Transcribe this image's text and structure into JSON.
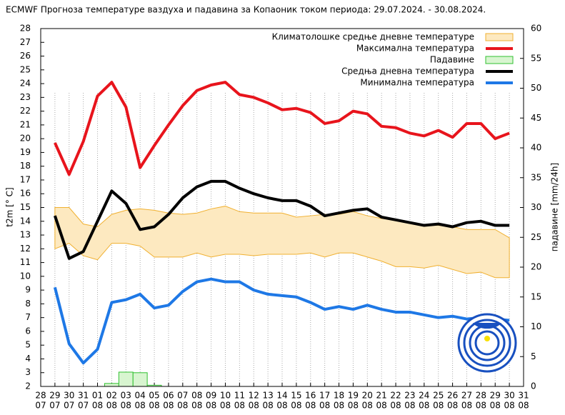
{
  "chart_data": {
    "type": "line",
    "title": "ECMWF Прогноза температуре ваздуха и падавина за Копаоник током периода: 29.07.2024. - 30.08.2024.",
    "ylabel": "t2m [° C]",
    "y2label": "падавине [mm/24h]",
    "categories": [
      [
        "28",
        "07"
      ],
      [
        "29",
        "07"
      ],
      [
        "30",
        "07"
      ],
      [
        "31",
        "07"
      ],
      [
        "01",
        "08"
      ],
      [
        "02",
        "08"
      ],
      [
        "03",
        "08"
      ],
      [
        "04",
        "08"
      ],
      [
        "05",
        "08"
      ],
      [
        "06",
        "08"
      ],
      [
        "07",
        "08"
      ],
      [
        "08",
        "08"
      ],
      [
        "09",
        "08"
      ],
      [
        "10",
        "08"
      ],
      [
        "11",
        "08"
      ],
      [
        "12",
        "08"
      ],
      [
        "13",
        "08"
      ],
      [
        "14",
        "08"
      ],
      [
        "15",
        "08"
      ],
      [
        "16",
        "08"
      ],
      [
        "17",
        "08"
      ],
      [
        "18",
        "08"
      ],
      [
        "19",
        "08"
      ],
      [
        "20",
        "08"
      ],
      [
        "21",
        "08"
      ],
      [
        "22",
        "08"
      ],
      [
        "23",
        "08"
      ],
      [
        "24",
        "08"
      ],
      [
        "25",
        "08"
      ],
      [
        "26",
        "08"
      ],
      [
        "27",
        "08"
      ],
      [
        "28",
        "08"
      ],
      [
        "29",
        "08"
      ],
      [
        "30",
        "08"
      ],
      [
        "31",
        "08"
      ]
    ],
    "ylim": [
      2,
      28
    ],
    "yticks": [
      2,
      3,
      4,
      5,
      6,
      7,
      8,
      9,
      10,
      11,
      12,
      13,
      14,
      15,
      16,
      17,
      18,
      19,
      20,
      21,
      22,
      23,
      24,
      25,
      26,
      27,
      28
    ],
    "y2lim": [
      0,
      60
    ],
    "y2ticks": [
      0,
      5,
      10,
      15,
      20,
      25,
      30,
      35,
      40,
      45,
      50,
      55,
      60
    ],
    "series": [
      {
        "name": "Климатолошке средње дневне температуре",
        "kind": "band",
        "color": "#f0b030",
        "fill": "#fde9c0",
        "high": [
          null,
          15.0,
          15.0,
          13.8,
          13.6,
          14.5,
          14.8,
          14.9,
          14.8,
          14.6,
          14.5,
          14.6,
          14.9,
          15.1,
          14.7,
          14.6,
          14.6,
          14.6,
          14.3,
          14.4,
          14.5,
          14.5,
          14.7,
          14.4,
          14.2,
          14.1,
          13.9,
          13.7,
          13.7,
          13.6,
          13.4,
          13.4,
          13.4,
          12.8,
          null
        ],
        "low": [
          null,
          12.0,
          12.4,
          11.5,
          11.2,
          12.4,
          12.4,
          12.2,
          11.4,
          11.4,
          11.4,
          11.7,
          11.4,
          11.6,
          11.6,
          11.5,
          11.6,
          11.6,
          11.6,
          11.7,
          11.4,
          11.7,
          11.7,
          11.4,
          11.1,
          10.7,
          10.7,
          10.6,
          10.8,
          10.5,
          10.2,
          10.3,
          9.9,
          9.9,
          null
        ]
      },
      {
        "name": "Максимална температура",
        "kind": "line",
        "color": "#e8141c",
        "values": [
          null,
          19.7,
          17.4,
          19.8,
          23.1,
          24.1,
          22.3,
          17.9,
          19.5,
          21.0,
          22.4,
          23.5,
          23.9,
          24.1,
          23.2,
          23.0,
          22.6,
          22.1,
          22.2,
          21.9,
          21.1,
          21.3,
          22.0,
          21.8,
          20.9,
          20.8,
          20.4,
          20.2,
          20.6,
          20.1,
          21.1,
          21.1,
          20.0,
          20.4,
          null
        ]
      },
      {
        "name": "Падавине",
        "kind": "bar",
        "axis": "y2",
        "color": "#30c030",
        "fill": "#d8f5d0",
        "values": [
          null,
          0,
          0,
          0,
          0,
          0.5,
          2.4,
          2.3,
          0.2,
          0,
          0,
          0,
          0,
          0,
          0,
          0,
          0,
          0,
          0,
          0,
          0,
          0,
          0,
          0,
          0,
          0,
          0,
          0,
          0,
          0,
          0,
          0,
          0,
          0,
          null
        ]
      },
      {
        "name": "Средња дневна температура",
        "kind": "line",
        "color": "#000000",
        "values": [
          null,
          14.4,
          11.3,
          11.8,
          14.0,
          16.2,
          15.3,
          13.4,
          13.6,
          14.5,
          15.7,
          16.5,
          16.9,
          16.9,
          16.4,
          16.0,
          15.7,
          15.5,
          15.5,
          15.1,
          14.4,
          14.6,
          14.8,
          14.9,
          14.3,
          14.1,
          13.9,
          13.7,
          13.8,
          13.6,
          13.9,
          14.0,
          13.7,
          13.7,
          null
        ]
      },
      {
        "name": "Минимална температура",
        "kind": "line",
        "color": "#1e78e6",
        "values": [
          null,
          9.2,
          5.1,
          3.7,
          4.7,
          8.1,
          8.3,
          8.7,
          7.7,
          7.9,
          8.9,
          9.6,
          9.8,
          9.6,
          9.6,
          9.0,
          8.7,
          8.6,
          8.5,
          8.1,
          7.6,
          7.8,
          7.6,
          7.9,
          7.6,
          7.4,
          7.4,
          7.2,
          7.0,
          7.1,
          6.9,
          7.0,
          6.9,
          6.8,
          null
        ]
      }
    ]
  }
}
